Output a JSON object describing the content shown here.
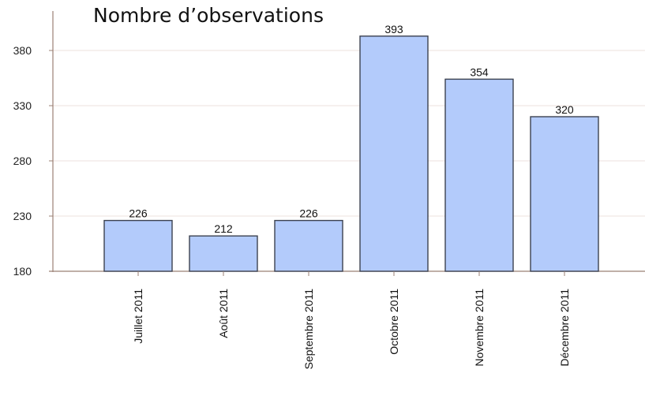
{
  "chart_data": {
    "type": "bar",
    "title": "Nombre d’observations",
    "categories": [
      "Juillet 2011",
      "Août 2011",
      "Septembre 2011",
      "Octobre 2011",
      "Novembre 2011",
      "Décembre 2011"
    ],
    "values": [
      226,
      212,
      226,
      393,
      354,
      320
    ],
    "yticks": [
      180,
      230,
      280,
      330,
      380
    ],
    "ylim": [
      180,
      400
    ],
    "xlabel": "",
    "ylabel": "",
    "grid": true,
    "legend": "none",
    "bar_color": "#b3cbfb",
    "bar_border_color": "#3c4250",
    "grid_color": "#eee2dc",
    "axis_color": "#9b8075"
  }
}
